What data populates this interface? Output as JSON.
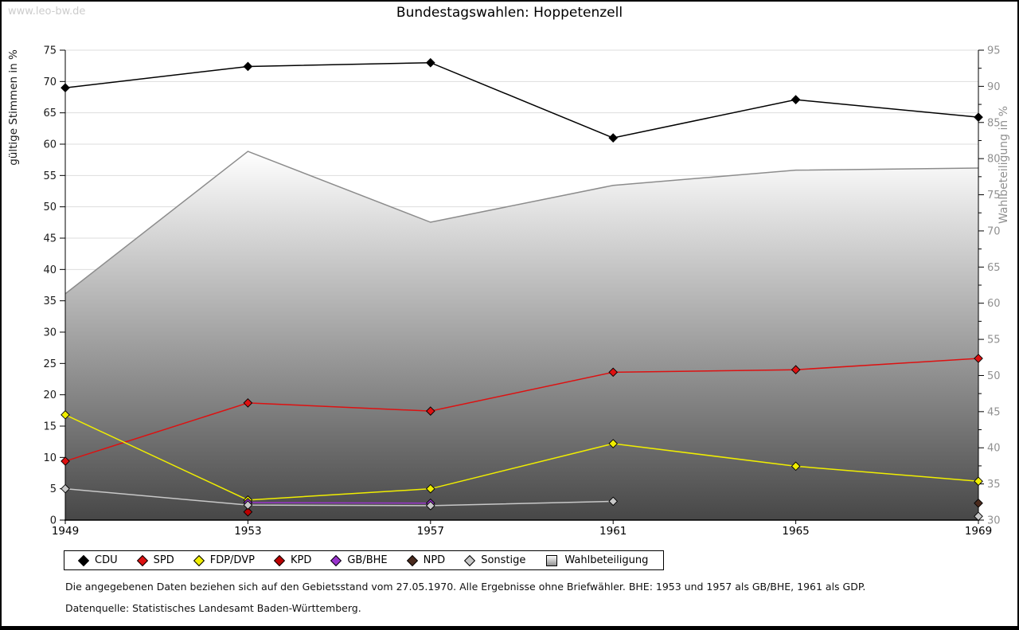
{
  "page": {
    "watermark": "www.leo-bw.de",
    "title": "Bundestagswahlen: Hoppetenzell",
    "footnote1": "Die angegebenen Daten beziehen sich auf den Gebietsstand vom 27.05.1970. Alle Ergebnisse ohne Briefwähler. BHE: 1953 und 1957 als GB/BHE, 1961 als GDP.",
    "footnote2": "Datenquelle: Statistisches Landesamt Baden-Württemberg."
  },
  "chart_data": {
    "type": "line",
    "title": "Bundestagswahlen: Hoppetenzell",
    "categories": [
      "1949",
      "1953",
      "1957",
      "1961",
      "1965",
      "1969"
    ],
    "left_axis": {
      "label": "gültige Stimmen in %",
      "min": 0,
      "max": 75,
      "step": 5
    },
    "right_axis": {
      "label": "Wahlbeteiligung in %",
      "min": 30,
      "max": 95,
      "step": 5,
      "minor_step": 2.5
    },
    "grid": true,
    "legend_position": "bottom",
    "colors": {
      "grid": "#dddddd",
      "axis": "#000000",
      "right_axis_text": "#909090",
      "left_axis_text": "#1a1a1a",
      "area_stroke": "#8c8c8c",
      "area_gradient_top": "#ffffff",
      "area_gradient_bottom": "#474747"
    },
    "series": [
      {
        "name": "CDU",
        "axis": "left",
        "style": "line",
        "color": "#000000",
        "values": [
          69.0,
          72.4,
          73.0,
          61.0,
          67.1,
          64.3
        ]
      },
      {
        "name": "SPD",
        "axis": "left",
        "style": "line",
        "color": "#dd1111",
        "values": [
          9.4,
          18.7,
          17.4,
          23.6,
          24.0,
          25.8
        ]
      },
      {
        "name": "FDP/DVP",
        "axis": "left",
        "style": "line",
        "color": "#f0ee00",
        "values": [
          16.8,
          3.2,
          5.0,
          12.2,
          8.6,
          6.2
        ]
      },
      {
        "name": "KPD",
        "axis": "left",
        "style": "line",
        "color": "#bb0000",
        "values": [
          null,
          1.3,
          null,
          null,
          null,
          null
        ]
      },
      {
        "name": "GB/BHE",
        "axis": "left",
        "style": "line",
        "color": "#9933cc",
        "values": [
          null,
          2.8,
          2.7,
          null,
          null,
          null
        ]
      },
      {
        "name": "NPD",
        "axis": "left",
        "style": "line",
        "color": "#4a2a1d",
        "values": [
          null,
          null,
          null,
          null,
          null,
          2.7
        ]
      },
      {
        "name": "Sonstige",
        "axis": "left",
        "style": "line",
        "color": "#c8c8c8",
        "values": [
          5.0,
          2.4,
          2.3,
          3.0,
          null,
          0.6
        ]
      },
      {
        "name": "Wahlbeteiligung",
        "axis": "right",
        "style": "area",
        "color": "#8c8c8c",
        "values": [
          61.3,
          81.0,
          71.2,
          76.3,
          78.4,
          78.7
        ]
      }
    ]
  }
}
